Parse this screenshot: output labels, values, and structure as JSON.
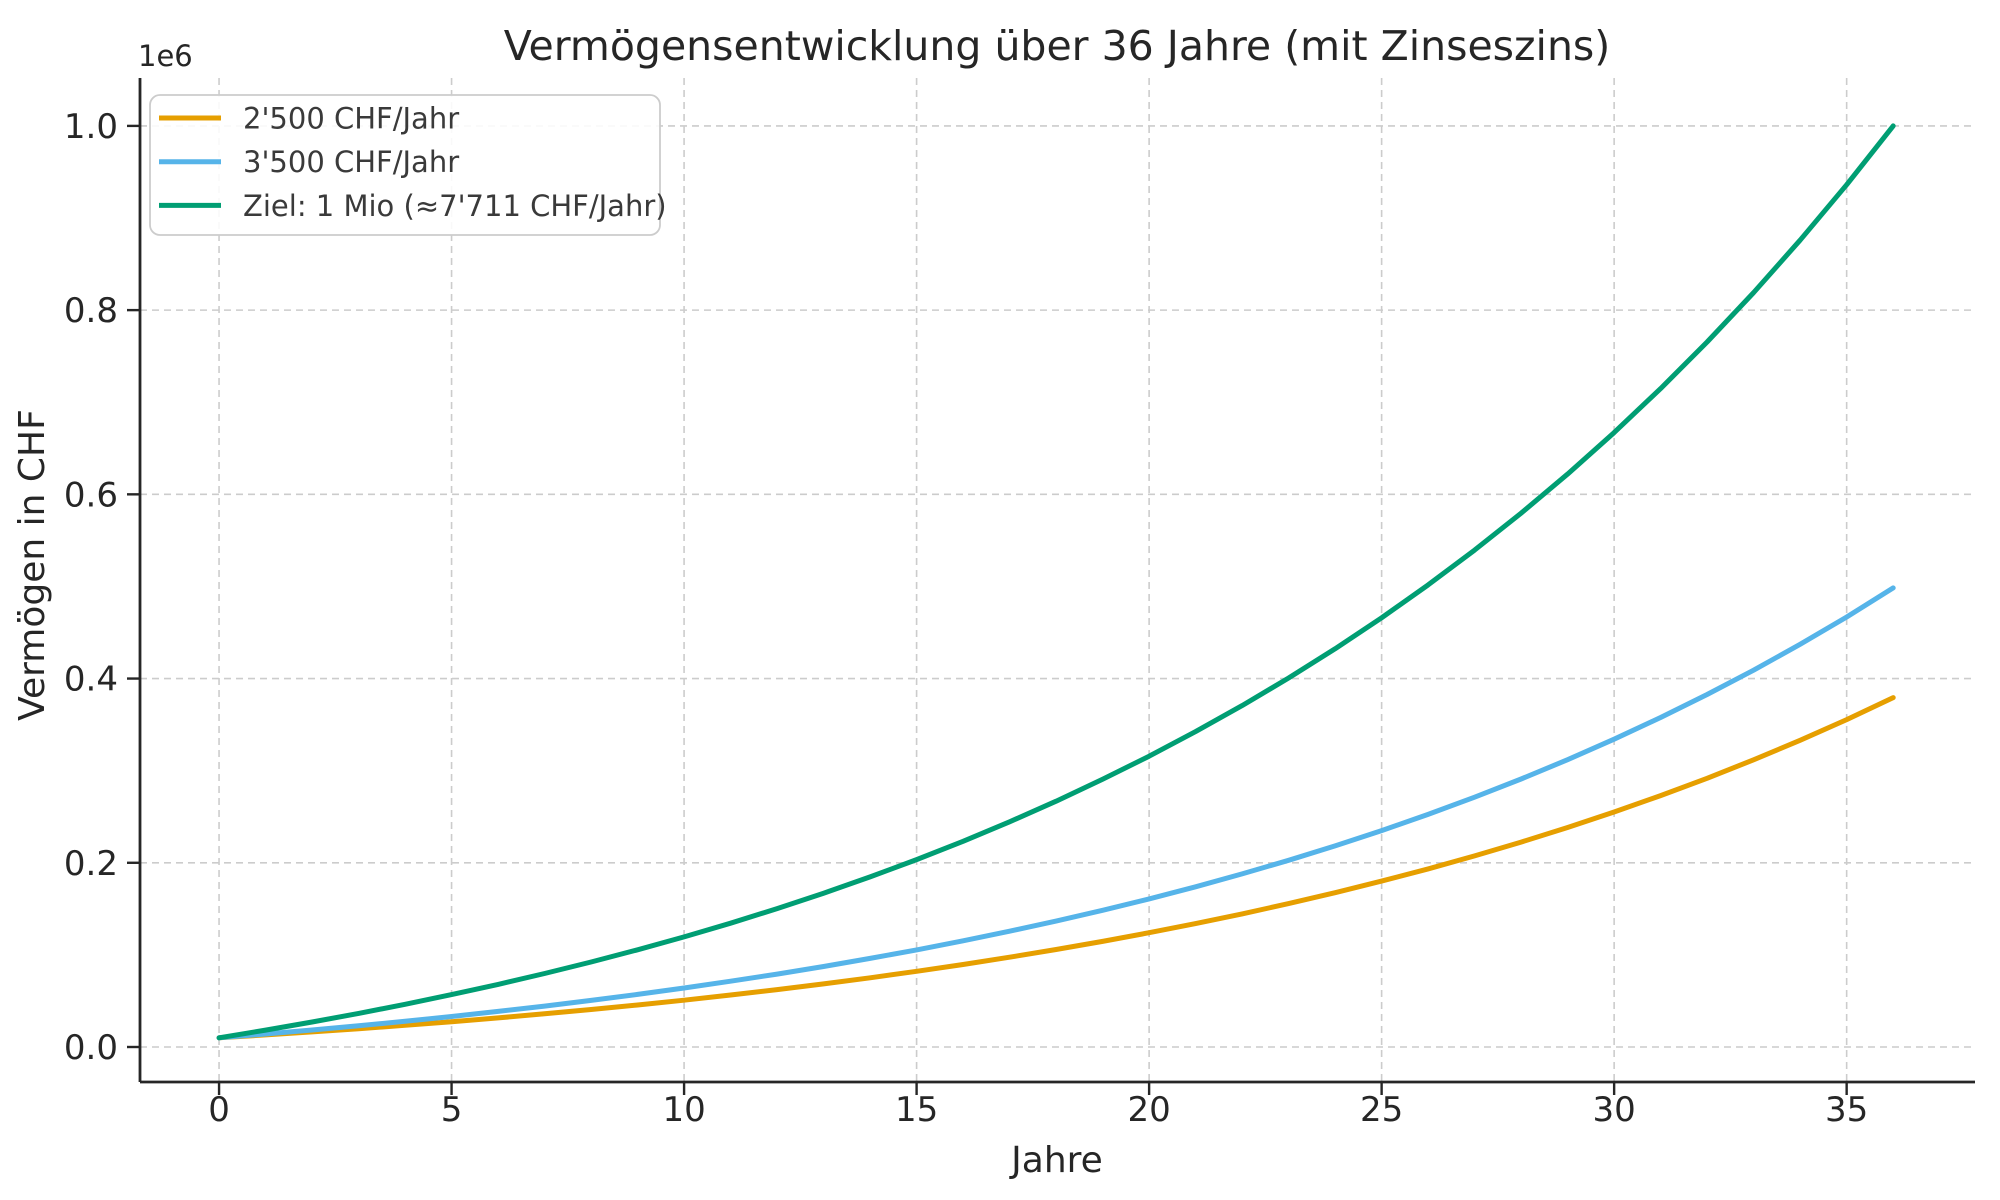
{
  "chart_data": {
    "type": "line",
    "title": "Vermögensentwicklung über 36 Jahre (mit Zinseszins)",
    "xlabel": "Jahre",
    "ylabel": "Vermögen in CHF",
    "y_offset_label": "1e6",
    "xlim": [
      -1.7,
      37.76
    ],
    "ylim": [
      -38000,
      1052000
    ],
    "grid": true,
    "grid_style": "dashed",
    "legend_position": "upper left",
    "x_ticks": {
      "values": [
        0,
        5,
        10,
        15,
        20,
        25,
        30,
        35
      ],
      "labels": [
        "0",
        "5",
        "10",
        "15",
        "20",
        "25",
        "30",
        "35"
      ]
    },
    "y_ticks": {
      "values": [
        0,
        200000,
        400000,
        600000,
        800000,
        1000000
      ],
      "labels": [
        "0.0",
        "0.2",
        "0.4",
        "0.6",
        "0.8",
        "1.0"
      ]
    },
    "x": [
      0,
      1,
      2,
      3,
      4,
      5,
      6,
      7,
      8,
      9,
      10,
      11,
      12,
      13,
      14,
      15,
      16,
      17,
      18,
      19,
      20,
      21,
      22,
      23,
      24,
      25,
      26,
      27,
      28,
      29,
      30,
      31,
      32,
      33,
      34,
      35,
      36
    ],
    "series": [
      {
        "name": "2'500 CHF/Jahr",
        "color": "#E69F00",
        "values": [
          10000,
          13100,
          16386,
          19869,
          23561,
          27475,
          31623,
          36021,
          40682,
          45623,
          50860,
          56412,
          62297,
          68544,
          75157,
          82156,
          89585,
          97460,
          105808,
          114656,
          124035,
          133978,
          144516,
          155687,
          167528,
          180080,
          193385,
          207488,
          222437,
          238283,
          255080,
          272885,
          291758,
          311764,
          332969,
          355448,
          379275
        ]
      },
      {
        "name": "3'500 CHF/Jahr",
        "color": "#56B4E9",
        "values": [
          10000,
          14100,
          18446,
          23053,
          27936,
          33112,
          38599,
          44414,
          50579,
          57115,
          64041,
          71384,
          79167,
          87426,
          96173,
          105432,
          115258,
          125673,
          136713,
          148416,
          160821,
          173971,
          187908,
          202682,
          218344,
          234945,
          252541,
          271193,
          290965,
          311923,
          334139,
          357687,
          382648,
          409107,
          437153,
          466883,
          498396
        ]
      },
      {
        "name": "Ziel: 1 Mio (≈7'711 CHF/Jahr)",
        "color": "#009E73",
        "values": [
          10000,
          18311,
          27121,
          36459,
          46358,
          56850,
          67972,
          79761,
          92258,
          105504,
          119546,
          134429,
          150206,
          166939,
          184667,
          203447,
          223364,
          244477,
          266857,
          290579,
          315725,
          342380,
          370633,
          400582,
          432328,
          465979,
          501649,
          539459,
          579537,
          622020,
          667053,
          714787,
          765385,
          819019,
          875871,
          936134,
          1000014
        ]
      }
    ]
  }
}
